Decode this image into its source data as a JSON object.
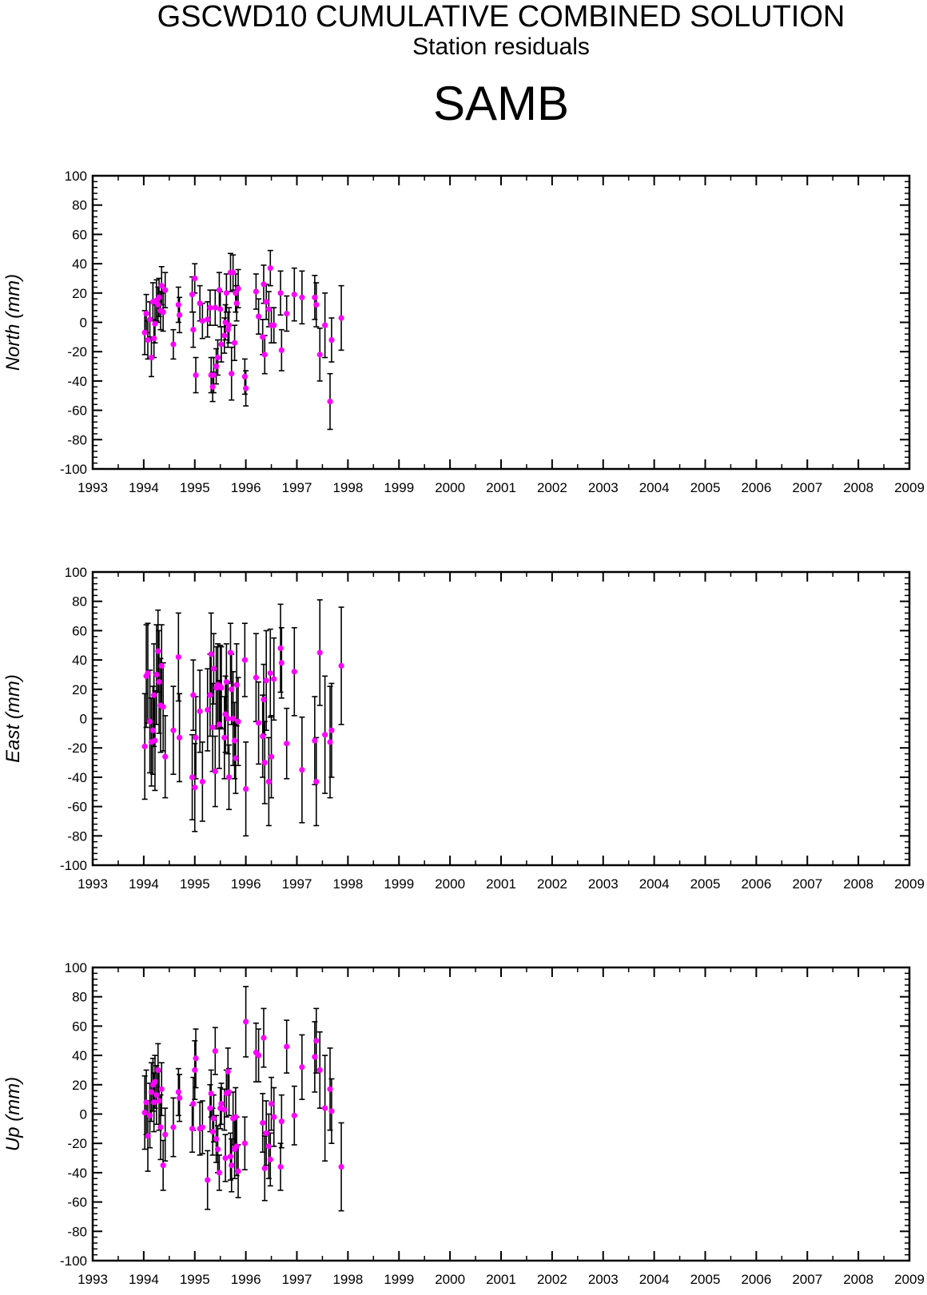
{
  "title": "GSCWD10 CUMULATIVE COMBINED SOLUTION",
  "subtitle": "Station residuals",
  "station": "SAMB",
  "colors": {
    "marker": "#ff00ff",
    "errorbar": "#000000",
    "axis": "#000000"
  },
  "chart_data": [
    {
      "type": "scatter",
      "ylabel": "North (mm)",
      "xlim": [
        1993,
        2009
      ],
      "ylim": [
        -100,
        100
      ],
      "xticks": [
        1993,
        1994,
        1995,
        1996,
        1997,
        1998,
        1999,
        2000,
        2001,
        2002,
        2003,
        2004,
        2005,
        2006,
        2007,
        2008,
        2009
      ],
      "yticks": [
        -100,
        -80,
        -60,
        -40,
        -20,
        0,
        20,
        40,
        60,
        80,
        100
      ],
      "grid": false,
      "points": [
        [
          1994.02,
          -7,
          15
        ],
        [
          1994.05,
          6,
          13
        ],
        [
          1994.08,
          -12,
          13
        ],
        [
          1994.12,
          2,
          12
        ],
        [
          1994.15,
          -24,
          13
        ],
        [
          1994.18,
          14,
          13
        ],
        [
          1994.2,
          -11,
          13
        ],
        [
          1994.22,
          -1,
          13
        ],
        [
          1994.25,
          15,
          14
        ],
        [
          1994.28,
          12,
          12
        ],
        [
          1994.3,
          17,
          13
        ],
        [
          1994.33,
          8,
          13
        ],
        [
          1994.35,
          25,
          13
        ],
        [
          1994.38,
          7,
          13
        ],
        [
          1994.42,
          22,
          12
        ],
        [
          1994.58,
          -15,
          10
        ],
        [
          1994.68,
          12,
          12
        ],
        [
          1994.7,
          5,
          12
        ],
        [
          1994.95,
          19,
          12
        ],
        [
          1994.97,
          -5,
          12
        ],
        [
          1995.0,
          30,
          10
        ],
        [
          1995.02,
          -36,
          12
        ],
        [
          1995.1,
          13,
          12
        ],
        [
          1995.15,
          1,
          12
        ],
        [
          1995.25,
          2,
          12
        ],
        [
          1995.3,
          10,
          12
        ],
        [
          1995.32,
          -36,
          12
        ],
        [
          1995.35,
          -44,
          10
        ],
        [
          1995.37,
          -36,
          12
        ],
        [
          1995.4,
          10,
          12
        ],
        [
          1995.42,
          -30,
          12
        ],
        [
          1995.45,
          -24,
          12
        ],
        [
          1995.48,
          22,
          12
        ],
        [
          1995.5,
          9,
          12
        ],
        [
          1995.52,
          -15,
          12
        ],
        [
          1995.58,
          -9,
          12
        ],
        [
          1995.6,
          0,
          12
        ],
        [
          1995.62,
          20,
          13
        ],
        [
          1995.65,
          -5,
          12
        ],
        [
          1995.67,
          -2,
          12
        ],
        [
          1995.7,
          34,
          13
        ],
        [
          1995.72,
          -35,
          18
        ],
        [
          1995.75,
          34,
          12
        ],
        [
          1995.78,
          -14,
          12
        ],
        [
          1995.8,
          20,
          13
        ],
        [
          1995.82,
          13,
          12
        ],
        [
          1995.85,
          23,
          13
        ],
        [
          1995.98,
          -37,
          12
        ],
        [
          1996.0,
          -45,
          12
        ],
        [
          1996.2,
          21,
          12
        ],
        [
          1996.25,
          4,
          12
        ],
        [
          1996.33,
          -10,
          12
        ],
        [
          1996.35,
          26,
          13
        ],
        [
          1996.37,
          -22,
          13
        ],
        [
          1996.4,
          14,
          12
        ],
        [
          1996.45,
          9,
          12
        ],
        [
          1996.48,
          37,
          12
        ],
        [
          1996.5,
          -2,
          12
        ],
        [
          1996.55,
          -2,
          12
        ],
        [
          1996.68,
          20,
          15
        ],
        [
          1996.7,
          -19,
          14
        ],
        [
          1996.8,
          6,
          12
        ],
        [
          1996.95,
          19,
          18
        ],
        [
          1997.1,
          17,
          18
        ],
        [
          1997.35,
          17,
          15
        ],
        [
          1997.38,
          12,
          15
        ],
        [
          1997.45,
          -22,
          18
        ],
        [
          1997.55,
          -2,
          22
        ],
        [
          1997.65,
          -54,
          19
        ],
        [
          1997.68,
          -12,
          15
        ],
        [
          1997.87,
          3,
          22
        ]
      ]
    },
    {
      "type": "scatter",
      "ylabel": "East (mm)",
      "xlim": [
        1993,
        2009
      ],
      "ylim": [
        -100,
        100
      ],
      "xticks": [
        1993,
        1994,
        1995,
        1996,
        1997,
        1998,
        1999,
        2000,
        2001,
        2002,
        2003,
        2004,
        2005,
        2006,
        2007,
        2008,
        2009
      ],
      "yticks": [
        -100,
        -80,
        -60,
        -40,
        -20,
        0,
        20,
        40,
        60,
        80,
        100
      ],
      "grid": false,
      "points": [
        [
          1994.02,
          -19,
          36
        ],
        [
          1994.05,
          29,
          35
        ],
        [
          1994.08,
          31,
          34
        ],
        [
          1994.12,
          -2,
          35
        ],
        [
          1994.15,
          -16,
          30
        ],
        [
          1994.18,
          -8,
          30
        ],
        [
          1994.2,
          16,
          35
        ],
        [
          1994.22,
          -15,
          34
        ],
        [
          1994.25,
          30,
          34
        ],
        [
          1994.28,
          46,
          28
        ],
        [
          1994.3,
          25,
          35
        ],
        [
          1994.33,
          9,
          32
        ],
        [
          1994.35,
          36,
          28
        ],
        [
          1994.38,
          8,
          30
        ],
        [
          1994.42,
          -26,
          28
        ],
        [
          1994.58,
          -8,
          30
        ],
        [
          1994.68,
          42,
          30
        ],
        [
          1994.7,
          -13,
          30
        ],
        [
          1994.95,
          -40,
          29
        ],
        [
          1994.97,
          16,
          24
        ],
        [
          1995.0,
          -47,
          30
        ],
        [
          1995.02,
          -13,
          28
        ],
        [
          1995.1,
          5,
          28
        ],
        [
          1995.15,
          -43,
          27
        ],
        [
          1995.25,
          6,
          28
        ],
        [
          1995.3,
          16,
          28
        ],
        [
          1995.32,
          44,
          28
        ],
        [
          1995.35,
          -6,
          30
        ],
        [
          1995.37,
          34,
          24
        ],
        [
          1995.4,
          -36,
          24
        ],
        [
          1995.42,
          21,
          28
        ],
        [
          1995.45,
          23,
          28
        ],
        [
          1995.48,
          -4,
          30
        ],
        [
          1995.5,
          22,
          28
        ],
        [
          1995.52,
          21,
          28
        ],
        [
          1995.58,
          -13,
          28
        ],
        [
          1995.6,
          3,
          26
        ],
        [
          1995.62,
          25,
          26
        ],
        [
          1995.65,
          0,
          24
        ],
        [
          1995.67,
          -40,
          22
        ],
        [
          1995.7,
          45,
          20
        ],
        [
          1995.72,
          20,
          24
        ],
        [
          1995.75,
          0,
          32
        ],
        [
          1995.78,
          -15,
          26
        ],
        [
          1995.8,
          -27,
          24
        ],
        [
          1995.82,
          23,
          28
        ],
        [
          1995.85,
          -2,
          30
        ],
        [
          1995.98,
          40,
          25
        ],
        [
          1996.0,
          -48,
          32
        ],
        [
          1996.2,
          28,
          30
        ],
        [
          1996.25,
          -3,
          28
        ],
        [
          1996.33,
          -12,
          28
        ],
        [
          1996.35,
          13,
          24
        ],
        [
          1996.37,
          -30,
          28
        ],
        [
          1996.4,
          26,
          34
        ],
        [
          1996.45,
          -43,
          30
        ],
        [
          1996.48,
          31,
          30
        ],
        [
          1996.5,
          -26,
          28
        ],
        [
          1996.55,
          27,
          28
        ],
        [
          1996.68,
          48,
          30
        ],
        [
          1996.7,
          38,
          24
        ],
        [
          1996.8,
          -17,
          24
        ],
        [
          1996.95,
          32,
          30
        ],
        [
          1997.1,
          -35,
          36
        ],
        [
          1997.35,
          -15,
          30
        ],
        [
          1997.38,
          -43,
          30
        ],
        [
          1997.45,
          45,
          36
        ],
        [
          1997.55,
          -11,
          40
        ],
        [
          1997.65,
          -16,
          38
        ],
        [
          1997.68,
          -8,
          32
        ],
        [
          1997.87,
          36,
          40
        ]
      ]
    },
    {
      "type": "scatter",
      "ylabel": "Up (mm)",
      "xlim": [
        1993,
        2009
      ],
      "ylim": [
        -100,
        100
      ],
      "xticks": [
        1993,
        1994,
        1995,
        1996,
        1997,
        1998,
        1999,
        2000,
        2001,
        2002,
        2003,
        2004,
        2005,
        2006,
        2007,
        2008,
        2009
      ],
      "yticks": [
        -100,
        -80,
        -60,
        -40,
        -20,
        0,
        20,
        40,
        60,
        80,
        100
      ],
      "grid": false,
      "points": [
        [
          1994.02,
          1,
          25
        ],
        [
          1994.05,
          8,
          22
        ],
        [
          1994.08,
          -15,
          24
        ],
        [
          1994.12,
          -1,
          22
        ],
        [
          1994.15,
          15,
          20
        ],
        [
          1994.18,
          20,
          18
        ],
        [
          1994.2,
          8,
          20
        ],
        [
          1994.22,
          22,
          18
        ],
        [
          1994.25,
          13,
          20
        ],
        [
          1994.28,
          30,
          18
        ],
        [
          1994.3,
          9,
          20
        ],
        [
          1994.33,
          -9,
          22
        ],
        [
          1994.35,
          17,
          18
        ],
        [
          1994.38,
          -35,
          17
        ],
        [
          1994.42,
          -14,
          18
        ],
        [
          1994.58,
          -9,
          20
        ],
        [
          1994.68,
          15,
          16
        ],
        [
          1994.7,
          11,
          16
        ],
        [
          1994.95,
          -10,
          16
        ],
        [
          1994.97,
          7,
          18
        ],
        [
          1995.0,
          30,
          20
        ],
        [
          1995.02,
          38,
          20
        ],
        [
          1995.1,
          -10,
          18
        ],
        [
          1995.15,
          -9,
          18
        ],
        [
          1995.25,
          -45,
          20
        ],
        [
          1995.3,
          4,
          16
        ],
        [
          1995.32,
          14,
          16
        ],
        [
          1995.35,
          -12,
          16
        ],
        [
          1995.37,
          -3,
          16
        ],
        [
          1995.4,
          43,
          16
        ],
        [
          1995.42,
          -17,
          16
        ],
        [
          1995.45,
          -24,
          16
        ],
        [
          1995.48,
          -40,
          12
        ],
        [
          1995.5,
          4,
          14
        ],
        [
          1995.52,
          7,
          14
        ],
        [
          1995.58,
          3,
          14
        ],
        [
          1995.6,
          -30,
          16
        ],
        [
          1995.62,
          14,
          16
        ],
        [
          1995.65,
          29,
          16
        ],
        [
          1995.67,
          15,
          16
        ],
        [
          1995.7,
          -29,
          16
        ],
        [
          1995.72,
          -35,
          18
        ],
        [
          1995.75,
          -3,
          18
        ],
        [
          1995.78,
          -24,
          20
        ],
        [
          1995.8,
          -2,
          20
        ],
        [
          1995.82,
          -22,
          20
        ],
        [
          1995.85,
          -39,
          18
        ],
        [
          1995.98,
          -20,
          18
        ],
        [
          1996.0,
          63,
          24
        ],
        [
          1996.2,
          42,
          20
        ],
        [
          1996.25,
          40,
          18
        ],
        [
          1996.33,
          -6,
          20
        ],
        [
          1996.35,
          52,
          20
        ],
        [
          1996.37,
          -37,
          22
        ],
        [
          1996.4,
          -13,
          22
        ],
        [
          1996.45,
          -22,
          22
        ],
        [
          1996.48,
          -31,
          18
        ],
        [
          1996.5,
          7,
          18
        ],
        [
          1996.55,
          -2,
          20
        ],
        [
          1996.68,
          -36,
          16
        ],
        [
          1996.7,
          -5,
          18
        ],
        [
          1996.8,
          46,
          18
        ],
        [
          1996.95,
          -1,
          20
        ],
        [
          1997.1,
          32,
          22
        ],
        [
          1997.35,
          39,
          24
        ],
        [
          1997.38,
          50,
          22
        ],
        [
          1997.45,
          30,
          26
        ],
        [
          1997.55,
          4,
          36
        ],
        [
          1997.65,
          17,
          28
        ],
        [
          1997.68,
          2,
          22
        ],
        [
          1997.87,
          -36,
          30
        ]
      ]
    }
  ]
}
